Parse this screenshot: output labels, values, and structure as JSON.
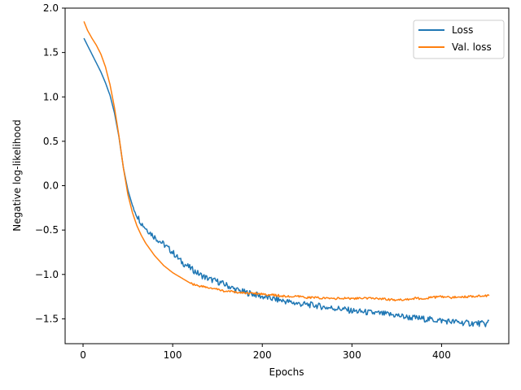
{
  "chart_data": {
    "type": "line",
    "title": "",
    "xlabel": "Epochs",
    "ylabel": "Negative log-likelihood",
    "xlim": [
      -20,
      475
    ],
    "ylim": [
      -1.78,
      2.0
    ],
    "xticks": [
      0,
      100,
      200,
      300,
      400
    ],
    "xtick_labels": [
      "0",
      "100",
      "200",
      "300",
      "400"
    ],
    "yticks": [
      -1.5,
      -1.0,
      -0.5,
      0.0,
      0.5,
      1.0,
      1.5,
      2.0
    ],
    "ytick_labels": [
      "−1.5",
      "−1.0",
      "−0.5",
      "0.0",
      "0.5",
      "1.0",
      "1.5",
      "2.0"
    ],
    "grid": false,
    "legend": {
      "placement": "top-right"
    },
    "series": [
      {
        "name": "Loss",
        "color": "#1f77b4",
        "x": [
          1,
          5,
          10,
          15,
          20,
          25,
          30,
          35,
          40,
          45,
          50,
          55,
          60,
          65,
          70,
          75,
          80,
          90,
          100,
          110,
          120,
          130,
          140,
          150,
          160,
          170,
          180,
          190,
          200,
          210,
          220,
          230,
          240,
          250,
          260,
          270,
          280,
          290,
          300,
          310,
          320,
          330,
          340,
          350,
          360,
          370,
          380,
          390,
          400,
          410,
          420,
          430,
          440,
          450,
          453
        ],
        "y": [
          1.66,
          1.58,
          1.48,
          1.38,
          1.28,
          1.16,
          1.02,
          0.82,
          0.55,
          0.2,
          -0.05,
          -0.22,
          -0.33,
          -0.42,
          -0.48,
          -0.53,
          -0.58,
          -0.66,
          -0.75,
          -0.86,
          -0.93,
          -1.0,
          -1.05,
          -1.08,
          -1.12,
          -1.17,
          -1.2,
          -1.22,
          -1.25,
          -1.27,
          -1.29,
          -1.31,
          -1.33,
          -1.34,
          -1.35,
          -1.37,
          -1.38,
          -1.39,
          -1.41,
          -1.42,
          -1.43,
          -1.44,
          -1.45,
          -1.46,
          -1.48,
          -1.49,
          -1.5,
          -1.51,
          -1.52,
          -1.53,
          -1.54,
          -1.55,
          -1.55,
          -1.56,
          -1.52
        ]
      },
      {
        "name": "Val. loss",
        "color": "#ff7f0e",
        "x": [
          1,
          5,
          10,
          15,
          20,
          25,
          30,
          35,
          40,
          45,
          50,
          55,
          60,
          65,
          70,
          75,
          80,
          90,
          100,
          110,
          120,
          130,
          140,
          150,
          160,
          170,
          180,
          190,
          200,
          210,
          220,
          230,
          240,
          250,
          260,
          270,
          280,
          290,
          300,
          310,
          320,
          330,
          340,
          350,
          360,
          370,
          380,
          390,
          400,
          410,
          420,
          430,
          440,
          450,
          453
        ],
        "y": [
          1.85,
          1.75,
          1.66,
          1.58,
          1.48,
          1.34,
          1.14,
          0.88,
          0.56,
          0.2,
          -0.1,
          -0.3,
          -0.45,
          -0.56,
          -0.65,
          -0.72,
          -0.79,
          -0.9,
          -0.98,
          -1.04,
          -1.1,
          -1.13,
          -1.15,
          -1.17,
          -1.19,
          -1.2,
          -1.21,
          -1.21,
          -1.22,
          -1.23,
          -1.24,
          -1.25,
          -1.25,
          -1.26,
          -1.26,
          -1.27,
          -1.27,
          -1.27,
          -1.27,
          -1.27,
          -1.27,
          -1.27,
          -1.28,
          -1.29,
          -1.28,
          -1.27,
          -1.27,
          -1.26,
          -1.25,
          -1.26,
          -1.25,
          -1.25,
          -1.24,
          -1.24,
          -1.24
        ]
      }
    ]
  }
}
